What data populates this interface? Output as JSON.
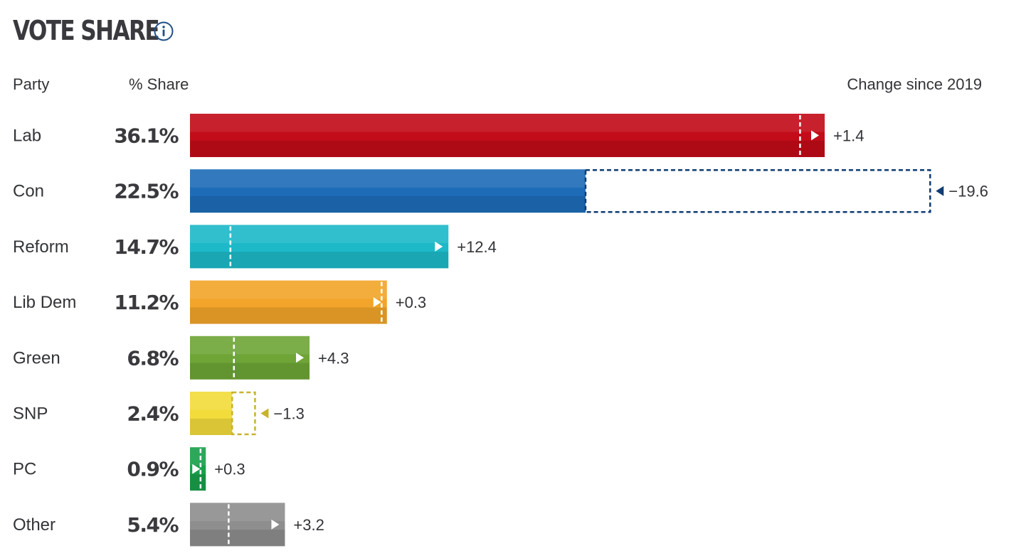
{
  "title": "VOTE SHARE",
  "headers": {
    "party": "Party",
    "share": "% Share",
    "change": "Change since 2019"
  },
  "icons": {
    "info": "info-circle-icon"
  },
  "chart_data": {
    "type": "bar",
    "orientation": "horizontal",
    "categories": [
      "Lab",
      "Con",
      "Reform",
      "Lib Dem",
      "Green",
      "SNP",
      "PC",
      "Other"
    ],
    "values": [
      36.1,
      22.5,
      14.7,
      11.2,
      6.8,
      2.4,
      0.9,
      5.4
    ],
    "value_labels": [
      "36.1%",
      "22.5%",
      "14.7%",
      "11.2%",
      "6.8%",
      "2.4%",
      "0.9%",
      "5.4%"
    ],
    "change_values": [
      1.4,
      -19.6,
      12.4,
      0.3,
      4.3,
      -1.3,
      0.3,
      3.2
    ],
    "change_labels": [
      "+1.4",
      "−19.6",
      "+12.4",
      "+0.3",
      "+4.3",
      "−1.3",
      "+0.3",
      "+3.2"
    ],
    "colors": [
      "#c20c19",
      "#1e6cb8",
      "#1db9c8",
      "#f2a52a",
      "#6ea536",
      "#f2dc3b",
      "#19a04a",
      "#8e8e8e"
    ],
    "dashed_marker_colors": [
      "#ffffff",
      "#0f3d74",
      "#ffffff",
      "#ffffff",
      "#ffffff",
      "#c8b32c",
      "#ffffff",
      "#ffffff"
    ],
    "xlim": [
      0,
      36.1
    ]
  }
}
